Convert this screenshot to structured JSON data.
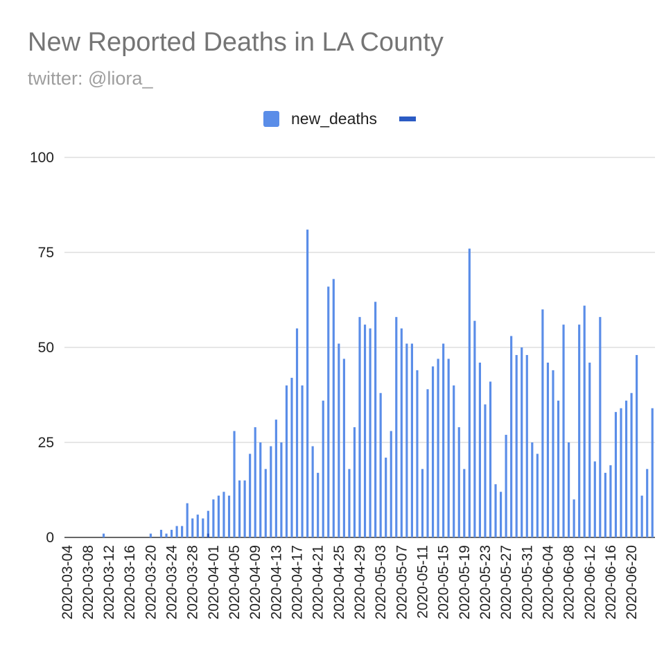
{
  "chart_data": {
    "type": "bar",
    "title": "New Reported Deaths in LA County",
    "subtitle": "twitter: @liora_",
    "xlabel": "",
    "ylabel": "",
    "ylim": [
      0,
      100
    ],
    "yticks": [
      "0",
      "25",
      "50",
      "75",
      "100"
    ],
    "grid": true,
    "legend_position": "top",
    "legend": [
      {
        "name": "new_deaths",
        "color": "#5a8de8",
        "kind": "swatch"
      },
      {
        "name": "",
        "color": "#2b5bc4",
        "kind": "line"
      }
    ],
    "tick_labels": [
      "2020-03-04",
      "2020-03-08",
      "2020-03-12",
      "2020-03-16",
      "2020-03-20",
      "2020-03-24",
      "2020-03-28",
      "2020-04-01",
      "2020-04-05",
      "2020-04-09",
      "2020-04-13",
      "2020-04-17",
      "2020-04-21",
      "2020-04-25",
      "2020-04-29",
      "2020-05-03",
      "2020-05-07",
      "2020-05-11",
      "2020-05-15",
      "2020-05-19",
      "2020-05-23",
      "2020-05-27",
      "2020-05-31",
      "2020-06-04",
      "2020-06-08",
      "2020-06-12",
      "2020-06-16",
      "2020-06-20"
    ],
    "start_date": "2020-03-04",
    "series": [
      {
        "name": "new_deaths",
        "color": "#5a8de8",
        "values": [
          0,
          0,
          0,
          0,
          0,
          0,
          0,
          1,
          0,
          0,
          0,
          0,
          0,
          0,
          0,
          0,
          1,
          0,
          2,
          1,
          2,
          3,
          3,
          9,
          5,
          6,
          5,
          7,
          10,
          11,
          12,
          11,
          28,
          15,
          15,
          22,
          29,
          25,
          18,
          24,
          31,
          25,
          40,
          42,
          55,
          40,
          81,
          24,
          17,
          36,
          66,
          68,
          51,
          47,
          18,
          29,
          58,
          56,
          55,
          62,
          38,
          21,
          28,
          58,
          55,
          51,
          51,
          44,
          18,
          39,
          45,
          47,
          51,
          47,
          40,
          29,
          18,
          76,
          57,
          46,
          35,
          41,
          14,
          12,
          27,
          53,
          48,
          50,
          48,
          25,
          22,
          60,
          46,
          44,
          36,
          56,
          25,
          10,
          56,
          61,
          46,
          20,
          58,
          17,
          19,
          33,
          34,
          36,
          38,
          48,
          11,
          18,
          34
        ]
      },
      {
        "name": "",
        "color": "#2b5bc4",
        "values": [
          0,
          0,
          0,
          0,
          0,
          0,
          0,
          0,
          0,
          0,
          0,
          0,
          0,
          0,
          0,
          0,
          0,
          0,
          0,
          0,
          0,
          0,
          0,
          0,
          0,
          0,
          0,
          1,
          0,
          0,
          0,
          0,
          0,
          0,
          0,
          0,
          0,
          0,
          0,
          0,
          0,
          0,
          0,
          0,
          0,
          0,
          0,
          0,
          0,
          0,
          0,
          0,
          0,
          0,
          0,
          0,
          0,
          0,
          0,
          0,
          0,
          0,
          0,
          0,
          0,
          0,
          0,
          0,
          0,
          0,
          0,
          0,
          0,
          0,
          0,
          0,
          0,
          0,
          0,
          0,
          0,
          0,
          0,
          0,
          0,
          0,
          0,
          0,
          0,
          0,
          0,
          0,
          0,
          0,
          0,
          0,
          0,
          0,
          0,
          0,
          0,
          0,
          0,
          0,
          0,
          0,
          0,
          0,
          0,
          0,
          0,
          0,
          0
        ]
      }
    ]
  }
}
